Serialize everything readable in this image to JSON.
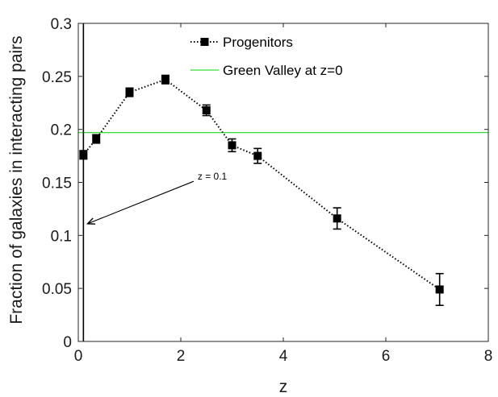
{
  "chart_data": {
    "type": "line",
    "xlabel": "z",
    "ylabel": "Fraction of galaxies in interacting pairs",
    "xlim": [
      0,
      8
    ],
    "ylim": [
      0,
      0.3
    ],
    "xticks": [
      0,
      2,
      4,
      6,
      8
    ],
    "xtick_labels": [
      "0",
      "2",
      "4",
      "6",
      "8"
    ],
    "yticks": [
      0,
      0.05,
      0.1,
      0.15,
      0.2,
      0.25,
      0.3
    ],
    "ytick_labels": [
      "0",
      "0.05",
      "0.1",
      "0.15",
      "0.2",
      "0.25",
      "0.3"
    ],
    "grid": false,
    "legend_position": "top-center",
    "series": [
      {
        "name": "Progenitors",
        "style": "dotted-square-markers",
        "color": "#000000",
        "x": [
          0.1,
          0.35,
          1.0,
          1.7,
          2.5,
          3.0,
          3.5,
          5.05,
          7.05
        ],
        "y": [
          0.176,
          0.191,
          0.235,
          0.247,
          0.218,
          0.185,
          0.175,
          0.116,
          0.049
        ],
        "yerr": [
          0.004,
          0.004,
          0.004,
          0.004,
          0.005,
          0.006,
          0.007,
          0.01,
          0.015
        ]
      },
      {
        "name": "Green Valley at z=0",
        "style": "solid-horizontal",
        "color": "#33dd33",
        "y": 0.197
      }
    ],
    "reference_line": {
      "x": 0.1,
      "color": "#000000"
    },
    "annotation": {
      "text": "z = 0.1",
      "tail": [
        2.25,
        0.151
      ],
      "head": [
        0.18,
        0.111
      ]
    }
  }
}
